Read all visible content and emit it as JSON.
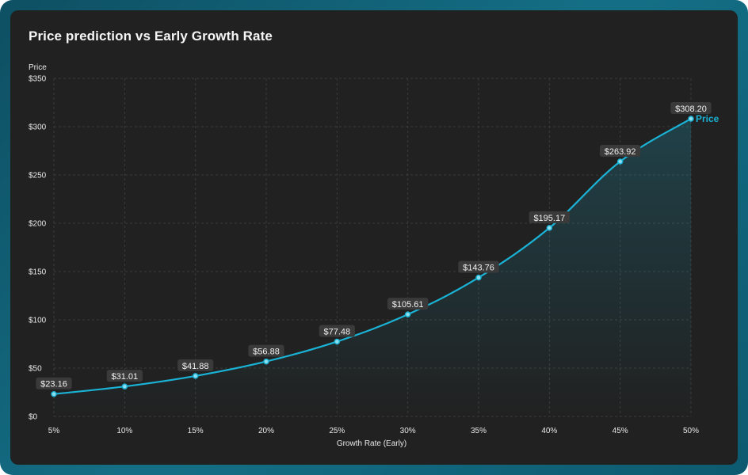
{
  "chart_data": {
    "type": "area",
    "title": "Price prediction vs Early Growth Rate",
    "xlabel": "Growth Rate (Early)",
    "ylabel": "Price",
    "categories": [
      "5%",
      "10%",
      "15%",
      "20%",
      "25%",
      "30%",
      "35%",
      "40%",
      "45%",
      "50%"
    ],
    "series": [
      {
        "name": "Price",
        "values": [
          23.16,
          31.01,
          41.88,
          56.88,
          77.48,
          105.61,
          143.76,
          195.17,
          263.92,
          308.2
        ],
        "labels": [
          "$23.16",
          "$31.01",
          "$41.88",
          "$56.88",
          "$77.48",
          "$105.61",
          "$143.76",
          "$195.17",
          "$263.92",
          "$308.20"
        ],
        "color": "#1ab3d6"
      }
    ],
    "ylim": [
      0,
      350
    ],
    "yticks": [
      0,
      50,
      100,
      150,
      200,
      250,
      300,
      350
    ],
    "ytick_labels": [
      "$0",
      "$50",
      "$100",
      "$150",
      "$200",
      "$250",
      "$300",
      "$350"
    ],
    "grid": true,
    "legend": "end-of-line"
  },
  "colors": {
    "background": "#212121",
    "frame": "#146f86",
    "accent": "#1ab3d6",
    "grid": "#3b3b3b"
  }
}
